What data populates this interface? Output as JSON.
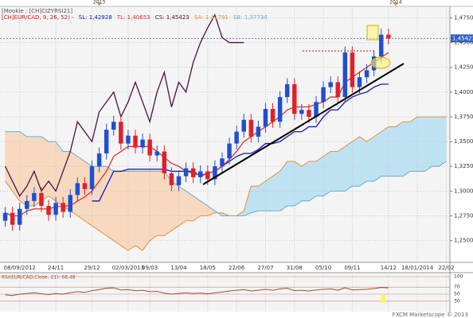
{
  "chart_data": {
    "type": "candlestick",
    "header": "[Mookie : [CH]CIZYRSI21]",
    "indicator_prefix": "[CH]EUR/CAD, 9, 26, 52) -",
    "footer": "FXCM Marketscope © 2013",
    "categories": [
      null,
      null,
      "08/09/2012",
      null,
      null,
      null,
      null,
      "24/11",
      null,
      null,
      null,
      null,
      "29/12",
      null,
      null,
      null,
      null,
      "02/03/2013",
      null,
      null,
      "09/03",
      null,
      null,
      null,
      "13/04",
      null,
      null,
      null,
      "18/05",
      null,
      null,
      null,
      "22/06",
      null,
      null,
      null,
      "27/07",
      null,
      null,
      null,
      "31/08",
      null,
      null,
      null,
      "05/10",
      null,
      null,
      null,
      "09/11",
      null,
      null,
      null,
      null,
      "14/12",
      null,
      null,
      null,
      "18/01/2014",
      null,
      null,
      null,
      "22/02"
    ],
    "years": [
      null,
      null,
      null,
      null,
      null,
      null,
      null,
      null,
      null,
      null,
      null,
      null,
      null,
      "2013",
      null,
      null,
      null,
      null,
      null,
      null,
      null,
      null,
      null,
      null,
      null,
      null,
      null,
      null,
      null,
      null,
      null,
      null,
      null,
      null,
      null,
      null,
      null,
      null,
      null,
      null,
      null,
      null,
      null,
      null,
      null,
      null,
      null,
      null,
      null,
      null,
      null,
      null,
      null,
      null,
      "2014",
      null,
      null,
      null,
      null,
      null,
      null,
      null
    ],
    "open": [
      1.27,
      1.278,
      1.266,
      1.282,
      1.29,
      1.298,
      1.285,
      1.276,
      1.288,
      1.279,
      1.296,
      1.308,
      1.302,
      1.325,
      1.338,
      1.362,
      1.37,
      1.348,
      1.356,
      1.344,
      1.352,
      1.336,
      1.34,
      1.318,
      1.306,
      1.315,
      1.323,
      1.314,
      1.32,
      1.312,
      1.325,
      1.333,
      1.348,
      1.36,
      1.372,
      1.355,
      1.365,
      1.383,
      1.37,
      1.395,
      1.408,
      1.378,
      1.382,
      1.375,
      1.39,
      1.405,
      1.41,
      1.395,
      1.44,
      1.405,
      1.415,
      1.422,
      1.436,
      1.458,
      null,
      null,
      null,
      null,
      null,
      null,
      null,
      null
    ],
    "high": [
      1.284,
      1.284,
      1.288,
      1.296,
      1.304,
      1.304,
      1.291,
      1.294,
      1.294,
      1.302,
      1.314,
      1.314,
      1.331,
      1.344,
      1.368,
      1.376,
      1.376,
      1.362,
      1.362,
      1.358,
      1.358,
      1.346,
      1.346,
      1.324,
      1.321,
      1.329,
      1.329,
      1.326,
      1.326,
      1.331,
      1.339,
      1.354,
      1.366,
      1.378,
      1.378,
      1.371,
      1.389,
      1.389,
      1.401,
      1.414,
      1.414,
      1.388,
      1.388,
      1.396,
      1.411,
      1.416,
      1.416,
      1.446,
      1.446,
      1.421,
      1.428,
      1.442,
      1.464,
      1.464,
      null,
      null,
      null,
      null,
      null,
      null,
      null,
      null
    ],
    "low": [
      1.264,
      1.26,
      1.26,
      1.276,
      1.284,
      1.279,
      1.27,
      1.27,
      1.273,
      1.273,
      1.29,
      1.296,
      1.296,
      1.319,
      1.332,
      1.356,
      1.342,
      1.342,
      1.338,
      1.338,
      1.33,
      1.33,
      1.312,
      1.3,
      1.3,
      1.309,
      1.308,
      1.308,
      1.306,
      1.306,
      1.319,
      1.327,
      1.342,
      1.354,
      1.349,
      1.349,
      1.359,
      1.364,
      1.364,
      1.389,
      1.372,
      1.372,
      1.369,
      1.369,
      1.384,
      1.399,
      1.389,
      1.389,
      1.399,
      1.399,
      1.409,
      1.416,
      1.43,
      1.4482,
      null,
      null,
      null,
      null,
      null,
      null,
      null,
      null
    ],
    "close": [
      1.278,
      1.266,
      1.282,
      1.29,
      1.298,
      1.285,
      1.276,
      1.288,
      1.279,
      1.296,
      1.308,
      1.302,
      1.325,
      1.338,
      1.362,
      1.37,
      1.348,
      1.356,
      1.344,
      1.352,
      1.336,
      1.34,
      1.318,
      1.306,
      1.315,
      1.323,
      1.314,
      1.32,
      1.312,
      1.325,
      1.333,
      1.348,
      1.36,
      1.372,
      1.355,
      1.365,
      1.383,
      1.37,
      1.395,
      1.408,
      1.378,
      1.382,
      1.375,
      1.39,
      1.405,
      1.41,
      1.395,
      1.44,
      1.405,
      1.415,
      1.422,
      1.436,
      1.458,
      1.4542,
      null,
      null,
      null,
      null,
      null,
      null,
      null,
      null
    ],
    "up_color": "#1f4fd0",
    "down_color": "#e0202a",
    "lines": [
      {
        "label": "SL: 1,42928",
        "color": "#1414c8",
        "values": [
          null,
          null,
          null,
          null,
          null,
          null,
          null,
          null,
          null,
          null,
          null,
          null,
          1.29,
          1.29,
          1.305,
          1.32,
          1.32,
          1.322,
          1.322,
          1.322,
          1.322,
          1.322,
          1.322,
          1.32,
          1.32,
          1.32,
          1.32,
          1.315,
          1.318,
          1.32,
          1.325,
          1.33,
          1.335,
          1.338,
          1.338,
          1.342,
          1.348,
          1.348,
          1.35,
          1.355,
          1.36,
          1.36,
          1.365,
          1.365,
          1.375,
          1.382,
          1.382,
          1.39,
          1.395,
          1.398,
          1.4,
          1.405,
          1.408,
          1.408,
          null,
          null,
          null,
          null,
          null,
          null,
          null,
          null
        ]
      },
      {
        "label": "TL: 1,40653",
        "color": "#e03030",
        "values": [
          1.278,
          1.275,
          1.275,
          1.28,
          1.282,
          1.282,
          1.282,
          1.284,
          1.285,
          1.285,
          1.29,
          1.294,
          1.3,
          1.31,
          1.32,
          1.335,
          1.34,
          1.345,
          1.345,
          1.345,
          1.345,
          1.34,
          1.334,
          1.328,
          1.325,
          1.32,
          1.318,
          1.316,
          1.318,
          1.32,
          1.325,
          1.332,
          1.34,
          1.35,
          1.355,
          1.36,
          1.365,
          1.37,
          1.375,
          1.382,
          1.385,
          1.385,
          1.385,
          1.388,
          1.39,
          1.395,
          1.395,
          1.41,
          1.415,
          1.42,
          1.425,
          1.43,
          1.435,
          1.44,
          null,
          null,
          null,
          null,
          null,
          null,
          null,
          null
        ]
      },
      {
        "label": "CS: 1,45423",
        "color": "#4b1048",
        "values": [
          1.325,
          1.31,
          1.295,
          1.305,
          1.32,
          1.3,
          1.31,
          1.3,
          1.32,
          1.34,
          1.37,
          1.36,
          1.35,
          1.38,
          1.39,
          1.4,
          1.375,
          1.39,
          1.41,
          1.39,
          1.37,
          1.4,
          1.42,
          1.385,
          1.41,
          1.4,
          1.43,
          1.45,
          1.465,
          1.478,
          1.455,
          1.45,
          1.45,
          1.45,
          null,
          null,
          null,
          null,
          null,
          null,
          null,
          null,
          null,
          null,
          null,
          null,
          null,
          null,
          null,
          null,
          null,
          null,
          null,
          null,
          null,
          null,
          null,
          null,
          null,
          null,
          null,
          null
        ]
      }
    ],
    "cloud": [
      {
        "label": "SA: 1,41791",
        "color": "#e8903a",
        "values": [
          1.31,
          1.3,
          1.29,
          1.285,
          1.285,
          1.29,
          1.295,
          1.29,
          1.285,
          1.28,
          1.275,
          1.27,
          1.265,
          1.26,
          1.255,
          1.25,
          1.245,
          1.24,
          1.245,
          1.24,
          1.25,
          1.255,
          1.255,
          1.26,
          1.265,
          1.27,
          1.27,
          1.275,
          1.275,
          1.278,
          1.278,
          1.275,
          1.275,
          1.28,
          1.305,
          1.305,
          1.31,
          1.315,
          1.32,
          1.33,
          1.33,
          1.325,
          1.33,
          1.33,
          1.335,
          1.34,
          1.34,
          1.345,
          1.35,
          1.355,
          1.35,
          1.355,
          1.36,
          1.365,
          1.365,
          1.37,
          1.37,
          1.375,
          1.375,
          1.375,
          1.375,
          1.375
        ]
      },
      {
        "label": "SB: 1,37734",
        "color": "#5fb0d8",
        "values": [
          1.36,
          1.36,
          1.36,
          1.355,
          1.355,
          1.355,
          1.35,
          1.35,
          1.34,
          1.34,
          1.335,
          1.33,
          1.325,
          1.325,
          1.325,
          1.32,
          1.32,
          1.32,
          1.32,
          1.32,
          1.32,
          1.32,
          1.32,
          1.31,
          1.305,
          1.3,
          1.295,
          1.29,
          1.285,
          1.28,
          1.275,
          1.275,
          1.275,
          1.275,
          1.278,
          1.28,
          1.28,
          1.28,
          1.28,
          1.285,
          1.285,
          1.29,
          1.29,
          1.295,
          1.295,
          1.3,
          1.3,
          1.3,
          1.305,
          1.305,
          1.31,
          1.31,
          1.315,
          1.315,
          1.315,
          1.315,
          1.32,
          1.32,
          1.32,
          1.325,
          1.325,
          1.33
        ]
      }
    ],
    "cloud_fill": {
      "above": "#bfe2f2",
      "below": "#f7d9bf"
    },
    "ylim": [
      1.228,
      1.485
    ],
    "yticks": [
      {
        "value": 1.25,
        "label": "1,2500"
      },
      {
        "value": 1.275,
        "label": "1,2750"
      },
      {
        "value": 1.3,
        "label": "1,3000"
      },
      {
        "value": 1.325,
        "label": "1,3250"
      },
      {
        "value": 1.35,
        "label": "1,3500"
      },
      {
        "value": 1.375,
        "label": "1,3750"
      },
      {
        "value": 1.4,
        "label": "1,4000"
      },
      {
        "value": 1.425,
        "label": "1,4250"
      },
      {
        "value": 1.45,
        "label": "1,4500"
      },
      {
        "value": 1.475,
        "label": "1,4750"
      }
    ],
    "grid": true,
    "last_price": {
      "value": 1.45423,
      "label": "1,45423"
    },
    "rsi": {
      "label": "RSI(EUR/CAD,Close, 21): 68,48",
      "color": "#a0502a",
      "values": [
        48,
        46,
        50,
        52,
        54,
        51,
        49,
        52,
        50,
        54,
        57,
        55,
        60,
        63,
        67,
        68,
        62,
        63,
        60,
        61,
        57,
        58,
        53,
        50,
        52,
        54,
        52,
        53,
        51,
        54,
        56,
        59,
        61,
        63,
        59,
        61,
        64,
        61,
        65,
        67,
        60,
        61,
        59,
        62,
        64,
        65,
        61,
        68,
        62,
        63,
        64,
        66,
        69,
        68,
        null,
        null,
        null,
        null,
        null,
        null,
        null,
        null
      ],
      "ylim": [
        0,
        100
      ],
      "yticks": [
        100,
        70,
        50,
        30
      ]
    }
  }
}
